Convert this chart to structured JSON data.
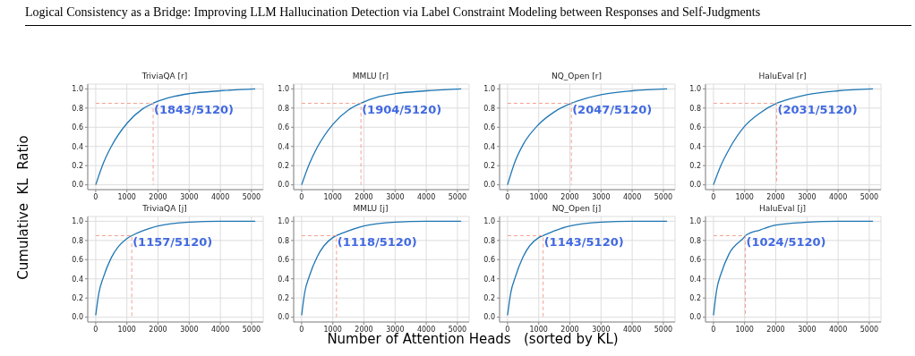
{
  "chart_data": [
    {
      "type": "line",
      "title": "TriviaQA [r]",
      "ylabel": "Cumulative  KL  Ratio",
      "annotations": [
        "Logical Consistency as a Bridge: Improving LLM Hallucination Detection via Label Constraint Modeling between Responses and Self-Judgments",
        {
          "text": "(1843/5120)",
          "x": 1843,
          "y": 0.85
        }
      ],
      "xlim": [
        -256,
        5376
      ],
      "xticks": [
        0,
        1000,
        2000,
        3000,
        4000,
        5000
      ],
      "ylim": [
        -0.05,
        1.05
      ],
      "yticks": [
        {
          "value": 0,
          "label": "0.0"
        },
        {
          "value": 0.2,
          "label": "0.2"
        },
        {
          "value": 0.4,
          "label": "0.4"
        },
        {
          "value": 0.6,
          "label": "0.6"
        },
        {
          "value": 0.8,
          "label": "0.8"
        },
        {
          "value": 1,
          "label": "1.0"
        }
      ],
      "grid": true,
      "marker": "none",
      "series": [
        {
          "color": "#1f77b4",
          "x": [
            0,
            250,
            500,
            1000,
            1500,
            1843,
            2500,
            3000,
            4000,
            5120
          ],
          "values": [
            0,
            0.23,
            0.4,
            0.64,
            0.79,
            0.85,
            0.92,
            0.95,
            0.98,
            1.0
          ]
        },
        {
          "color": "#f4a08f",
          "line_style": "dashed",
          "x": [
            0,
            1843,
            1843
          ],
          "values": [
            0.85,
            0.85,
            0
          ]
        }
      ]
    },
    {
      "type": "line",
      "title": "MMLU [r]",
      "annotations": [
        {
          "text": "(1904/5120)",
          "x": 1904,
          "y": 0.85
        }
      ],
      "xlim": [
        -256,
        5376
      ],
      "xticks": [
        0,
        1000,
        2000,
        3000,
        4000,
        5000
      ],
      "ylim": [
        -0.05,
        1.05
      ],
      "yticks": [
        {
          "value": 0,
          "label": "0.0"
        },
        {
          "value": 0.2,
          "label": "0.2"
        },
        {
          "value": 0.4,
          "label": "0.4"
        },
        {
          "value": 0.6,
          "label": "0.6"
        },
        {
          "value": 0.8,
          "label": "0.8"
        },
        {
          "value": 1,
          "label": "1.0"
        }
      ],
      "grid": true,
      "marker": "none",
      "series": [
        {
          "color": "#1f77b4",
          "x": [
            0,
            250,
            500,
            1000,
            1500,
            1904,
            2500,
            3000,
            4000,
            5120
          ],
          "values": [
            0,
            0.22,
            0.39,
            0.63,
            0.78,
            0.85,
            0.92,
            0.95,
            0.98,
            1.0
          ]
        },
        {
          "color": "#f4a08f",
          "line_style": "dashed",
          "x": [
            0,
            1904,
            1904
          ],
          "values": [
            0.85,
            0.85,
            0
          ]
        }
      ]
    },
    {
      "type": "line",
      "title": "NQ_Open [r]",
      "annotations": [
        {
          "text": "(2047/5120)",
          "x": 2047,
          "y": 0.85
        }
      ],
      "xlim": [
        -256,
        5376
      ],
      "xticks": [
        0,
        1000,
        2000,
        3000,
        4000,
        5000
      ],
      "ylim": [
        -0.05,
        1.05
      ],
      "yticks": [
        {
          "value": 0,
          "label": "0.0"
        },
        {
          "value": 0.2,
          "label": "0.2"
        },
        {
          "value": 0.4,
          "label": "0.4"
        },
        {
          "value": 0.6,
          "label": "0.6"
        },
        {
          "value": 0.8,
          "label": "0.8"
        },
        {
          "value": 1,
          "label": "1.0"
        }
      ],
      "grid": true,
      "marker": "none",
      "series": [
        {
          "color": "#1f77b4",
          "x": [
            0,
            250,
            500,
            1000,
            1500,
            2047,
            2500,
            3000,
            4000,
            5120
          ],
          "values": [
            0,
            0.25,
            0.42,
            0.63,
            0.76,
            0.85,
            0.9,
            0.94,
            0.98,
            1.0
          ]
        },
        {
          "color": "#f4a08f",
          "line_style": "dashed",
          "x": [
            0,
            2047,
            2047
          ],
          "values": [
            0.85,
            0.85,
            0
          ]
        }
      ]
    },
    {
      "type": "line",
      "title": "HaluEval [r]",
      "annotations": [
        {
          "text": "(2031/5120)",
          "x": 2031,
          "y": 0.85
        }
      ],
      "xlim": [
        -256,
        5376
      ],
      "xticks": [
        0,
        1000,
        2000,
        3000,
        4000,
        5000
      ],
      "ylim": [
        -0.05,
        1.05
      ],
      "yticks": [
        {
          "value": 0,
          "label": "0.0"
        },
        {
          "value": 0.2,
          "label": "0.2"
        },
        {
          "value": 0.4,
          "label": "0.4"
        },
        {
          "value": 0.6,
          "label": "0.6"
        },
        {
          "value": 0.8,
          "label": "0.8"
        },
        {
          "value": 1,
          "label": "1.0"
        }
      ],
      "grid": true,
      "marker": "none",
      "series": [
        {
          "color": "#1f77b4",
          "x": [
            0,
            250,
            500,
            1000,
            1500,
            2031,
            2500,
            3000,
            4000,
            5120
          ],
          "values": [
            0,
            0.21,
            0.37,
            0.61,
            0.75,
            0.85,
            0.9,
            0.94,
            0.98,
            1.0
          ]
        },
        {
          "color": "#f4a08f",
          "line_style": "dashed",
          "x": [
            0,
            2031,
            2031
          ],
          "values": [
            0.85,
            0.85,
            0
          ]
        }
      ]
    },
    {
      "type": "line",
      "title": "TriviaQA [j]",
      "xlabel": "Number of Attention Heads   (sorted by KL)",
      "annotations": [
        {
          "text": "(1157/5120)",
          "x": 1157,
          "y": 0.85
        }
      ],
      "xlim": [
        -256,
        5376
      ],
      "xticks": [
        0,
        1000,
        2000,
        3000,
        4000,
        5000
      ],
      "ylim": [
        -0.05,
        1.05
      ],
      "yticks": [
        {
          "value": 0,
          "label": "0.0"
        },
        {
          "value": 0.2,
          "label": "0.2"
        },
        {
          "value": 0.4,
          "label": "0.4"
        },
        {
          "value": 0.6,
          "label": "0.6"
        },
        {
          "value": 0.8,
          "label": "0.8"
        },
        {
          "value": 1,
          "label": "1.0"
        }
      ],
      "grid": true,
      "marker": "none",
      "series": [
        {
          "color": "#1f77b4",
          "x": [
            0,
            100,
            250,
            500,
            1000,
            1157,
            1500,
            2000,
            3000,
            4000,
            5120
          ],
          "values": [
            0.02,
            0.25,
            0.42,
            0.62,
            0.82,
            0.85,
            0.9,
            0.95,
            0.99,
            1.0,
            1.0
          ]
        },
        {
          "color": "#f4a08f",
          "line_style": "dashed",
          "x": [
            0,
            1157,
            1157
          ],
          "values": [
            0.85,
            0.85,
            0
          ]
        }
      ]
    },
    {
      "type": "line",
      "title": "MMLU [j]",
      "annotations": [
        {
          "text": "(1118/5120)",
          "x": 1118,
          "y": 0.85
        }
      ],
      "xlim": [
        -256,
        5376
      ],
      "xticks": [
        0,
        1000,
        2000,
        3000,
        4000,
        5000
      ],
      "ylim": [
        -0.05,
        1.05
      ],
      "yticks": [
        {
          "value": 0,
          "label": "0.0"
        },
        {
          "value": 0.2,
          "label": "0.2"
        },
        {
          "value": 0.4,
          "label": "0.4"
        },
        {
          "value": 0.6,
          "label": "0.6"
        },
        {
          "value": 0.8,
          "label": "0.8"
        },
        {
          "value": 1,
          "label": "1.0"
        }
      ],
      "grid": true,
      "marker": "none",
      "series": [
        {
          "color": "#1f77b4",
          "x": [
            0,
            100,
            250,
            500,
            1000,
            1118,
            1500,
            2000,
            3000,
            4000,
            5120
          ],
          "values": [
            0.02,
            0.26,
            0.43,
            0.63,
            0.83,
            0.85,
            0.9,
            0.95,
            0.99,
            1.0,
            1.0
          ]
        },
        {
          "color": "#f4a08f",
          "line_style": "dashed",
          "x": [
            0,
            1118,
            1118
          ],
          "values": [
            0.85,
            0.85,
            0
          ]
        }
      ]
    },
    {
      "type": "line",
      "title": "NQ_Open [j]",
      "annotations": [
        {
          "text": "(1143/5120)",
          "x": 1143,
          "y": 0.85
        }
      ],
      "xlim": [
        -256,
        5376
      ],
      "xticks": [
        0,
        1000,
        2000,
        3000,
        4000,
        5000
      ],
      "ylim": [
        -0.05,
        1.05
      ],
      "yticks": [
        {
          "value": 0,
          "label": "0.0"
        },
        {
          "value": 0.2,
          "label": "0.2"
        },
        {
          "value": 0.4,
          "label": "0.4"
        },
        {
          "value": 0.6,
          "label": "0.6"
        },
        {
          "value": 0.8,
          "label": "0.8"
        },
        {
          "value": 1,
          "label": "1.0"
        }
      ],
      "grid": true,
      "marker": "none",
      "series": [
        {
          "color": "#1f77b4",
          "x": [
            0,
            100,
            250,
            500,
            1000,
            1143,
            1500,
            2000,
            3000,
            4000,
            5120
          ],
          "values": [
            0.02,
            0.25,
            0.42,
            0.63,
            0.83,
            0.85,
            0.9,
            0.95,
            0.99,
            1.0,
            1.0
          ]
        },
        {
          "color": "#f4a08f",
          "line_style": "dashed",
          "x": [
            0,
            1143,
            1143
          ],
          "values": [
            0.85,
            0.85,
            0
          ]
        }
      ]
    },
    {
      "type": "line",
      "title": "HaluEval [j]",
      "annotations": [
        {
          "text": "(1024/5120)",
          "x": 1024,
          "y": 0.85
        }
      ],
      "xlim": [
        -256,
        5376
      ],
      "xticks": [
        0,
        1000,
        2000,
        3000,
        4000,
        5000
      ],
      "ylim": [
        -0.05,
        1.05
      ],
      "yticks": [
        {
          "value": 0,
          "label": "0.0"
        },
        {
          "value": 0.2,
          "label": "0.2"
        },
        {
          "value": 0.4,
          "label": "0.4"
        },
        {
          "value": 0.6,
          "label": "0.6"
        },
        {
          "value": 0.8,
          "label": "0.8"
        },
        {
          "value": 1,
          "label": "1.0"
        }
      ],
      "grid": true,
      "marker": "none",
      "series": [
        {
          "color": "#1f77b4",
          "x": [
            0,
            100,
            250,
            500,
            1000,
            1024,
            1500,
            2000,
            3000,
            4000,
            5120
          ],
          "values": [
            0.02,
            0.28,
            0.46,
            0.66,
            0.84,
            0.85,
            0.91,
            0.96,
            0.99,
            1.0,
            1.0
          ]
        },
        {
          "color": "#f4a08f",
          "line_style": "dashed",
          "x": [
            0,
            1024,
            1024
          ],
          "values": [
            0.85,
            0.85,
            0
          ]
        }
      ]
    }
  ]
}
